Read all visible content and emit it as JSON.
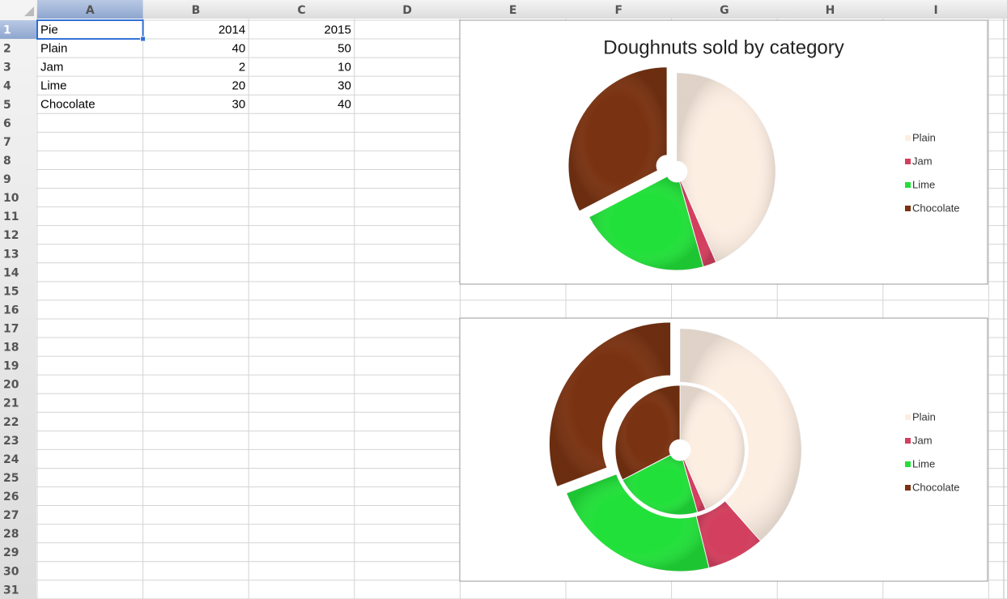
{
  "sheet": {
    "columns": [
      "A",
      "B",
      "C",
      "D",
      "E",
      "F",
      "G",
      "H",
      "I"
    ],
    "row_numbers": [
      1,
      2,
      3,
      4,
      5,
      6,
      7,
      8,
      9,
      10,
      11,
      12,
      13,
      14,
      15,
      16,
      17,
      18,
      19,
      20,
      21,
      22,
      23,
      24,
      25,
      26,
      27,
      28,
      29,
      30,
      31
    ],
    "cells": [
      [
        "Pie",
        2014,
        2015
      ],
      [
        "Plain",
        40,
        50
      ],
      [
        "Jam",
        2,
        10
      ],
      [
        "Lime",
        20,
        30
      ],
      [
        "Chocolate",
        30,
        40
      ]
    ]
  },
  "charts": [
    {
      "type": "doughnut",
      "title": "Doughnuts sold by category",
      "colors": [
        "#fdeee2",
        "#d33f5e",
        "#22e03a",
        "#7a3312"
      ],
      "exploded": "Chocolate"
    },
    {
      "type": "doughnut",
      "colors": [
        "#fdeee2",
        "#d33f5e",
        "#22e03a",
        "#7a3312"
      ],
      "exploded": "Chocolate"
    }
  ]
}
